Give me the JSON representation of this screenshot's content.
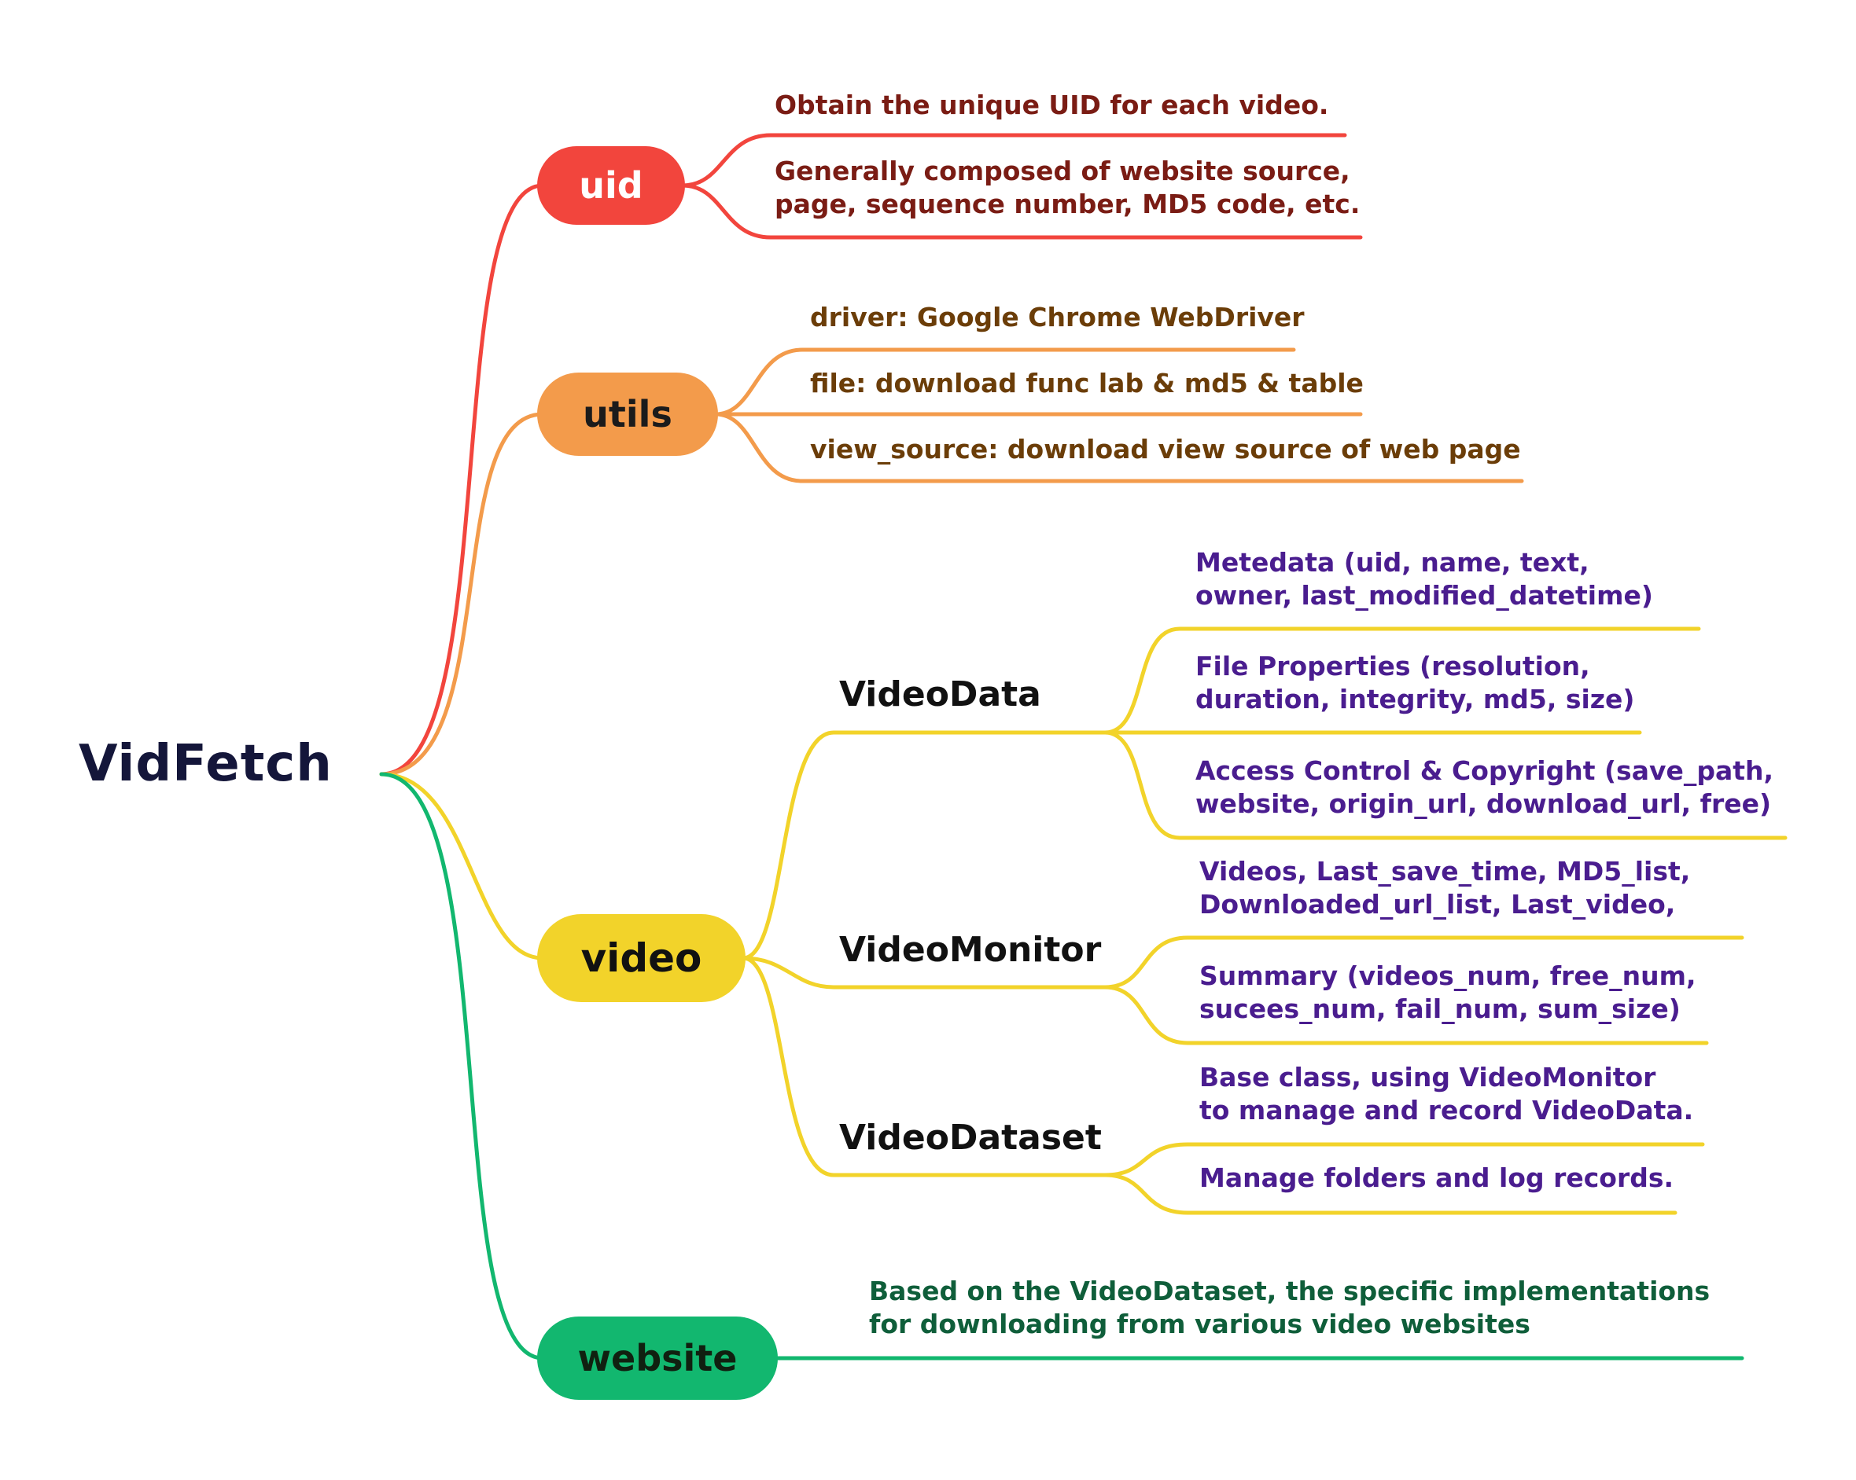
{
  "root": {
    "label": "VidFetch"
  },
  "colors": {
    "uid": "#f2453d",
    "utils": "#f39b4b",
    "video": "#f2d32a",
    "website": "#12b76f",
    "root_text": "#14163a",
    "leaf_red": "#7a1c14",
    "leaf_orange": "#6b3d08",
    "leaf_purple": "#4a1d8f",
    "leaf_green": "#0f5e3a"
  },
  "branches": {
    "uid": {
      "label": "uid",
      "leaves": [
        "Obtain the unique UID for each video.",
        "Generally composed of website source,\npage, sequence number, MD5 code, etc."
      ]
    },
    "utils": {
      "label": "utils",
      "leaves": [
        "driver: Google Chrome WebDriver",
        "file: download func lab & md5 & table",
        "view_source: download view source of web page"
      ]
    },
    "video": {
      "label": "video",
      "children": {
        "videodata": {
          "label": "VideoData",
          "leaves": [
            "Metedata (uid, name, text,\nowner, last_modified_datetime)",
            "File Properties (resolution,\nduration, integrity, md5, size)",
            "Access Control & Copyright (save_path,\nwebsite, origin_url, download_url, free)"
          ]
        },
        "videomonitor": {
          "label": "VideoMonitor",
          "leaves": [
            "Videos, Last_save_time, MD5_list,\nDownloaded_url_list, Last_video,",
            "Summary (videos_num, free_num,\nsucees_num, fail_num, sum_size)"
          ]
        },
        "videodataset": {
          "label": "VideoDataset",
          "leaves": [
            "Base class, using VideoMonitor\nto manage and record VideoData.",
            "Manage  folders and log records."
          ]
        }
      }
    },
    "website": {
      "label": "website",
      "leaves": [
        "Based on the VideoDataset, the specific implementations\nfor downloading from various video websites"
      ]
    }
  }
}
